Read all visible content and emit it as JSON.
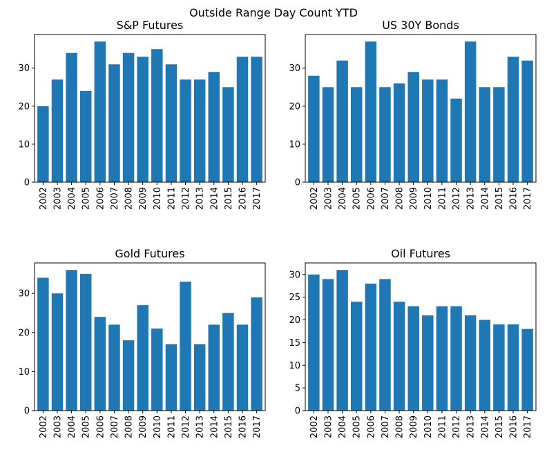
{
  "figure": {
    "title": "Outside Range Day Count YTD",
    "bar_color": "#1f77b4"
  },
  "chart_data": [
    {
      "type": "bar",
      "title": "S&P Futures",
      "categories": [
        "2002",
        "2003",
        "2004",
        "2005",
        "2006",
        "2007",
        "2008",
        "2009",
        "2010",
        "2011",
        "2012",
        "2013",
        "2014",
        "2015",
        "2016",
        "2017"
      ],
      "values": [
        20,
        27,
        34,
        24,
        37,
        31,
        34,
        33,
        35,
        31,
        27,
        27,
        29,
        25,
        33,
        33
      ],
      "yticks": [
        0,
        10,
        20,
        30
      ],
      "ylim": [
        0,
        38.85
      ],
      "xlabel": "",
      "ylabel": ""
    },
    {
      "type": "bar",
      "title": "US 30Y Bonds",
      "categories": [
        "2002",
        "2003",
        "2004",
        "2005",
        "2006",
        "2007",
        "2008",
        "2009",
        "2010",
        "2011",
        "2012",
        "2013",
        "2014",
        "2015",
        "2016",
        "2017"
      ],
      "values": [
        28,
        25,
        32,
        25,
        37,
        25,
        26,
        29,
        27,
        27,
        22,
        37,
        25,
        25,
        33,
        32
      ],
      "yticks": [
        0,
        10,
        20,
        30
      ],
      "ylim": [
        0,
        38.85
      ],
      "xlabel": "",
      "ylabel": ""
    },
    {
      "type": "bar",
      "title": "Gold Futures",
      "categories": [
        "2002",
        "2003",
        "2004",
        "2005",
        "2006",
        "2007",
        "2008",
        "2009",
        "2010",
        "2011",
        "2012",
        "2013",
        "2014",
        "2015",
        "2016",
        "2017"
      ],
      "values": [
        34,
        30,
        36,
        35,
        24,
        22,
        18,
        27,
        21,
        17,
        33,
        17,
        22,
        25,
        22,
        29
      ],
      "yticks": [
        0,
        10,
        20,
        30
      ],
      "ylim": [
        0,
        37.8
      ],
      "xlabel": "",
      "ylabel": ""
    },
    {
      "type": "bar",
      "title": "Oil Futures",
      "categories": [
        "2002",
        "2003",
        "2004",
        "2005",
        "2006",
        "2007",
        "2008",
        "2009",
        "2010",
        "2011",
        "2012",
        "2013",
        "2014",
        "2015",
        "2016",
        "2017"
      ],
      "values": [
        30,
        29,
        31,
        24,
        28,
        29,
        24,
        23,
        21,
        23,
        23,
        21,
        20,
        19,
        19,
        18
      ],
      "yticks": [
        0,
        5,
        10,
        15,
        20,
        25,
        30
      ],
      "ylim": [
        0,
        32.55
      ],
      "xlabel": "",
      "ylabel": ""
    }
  ]
}
